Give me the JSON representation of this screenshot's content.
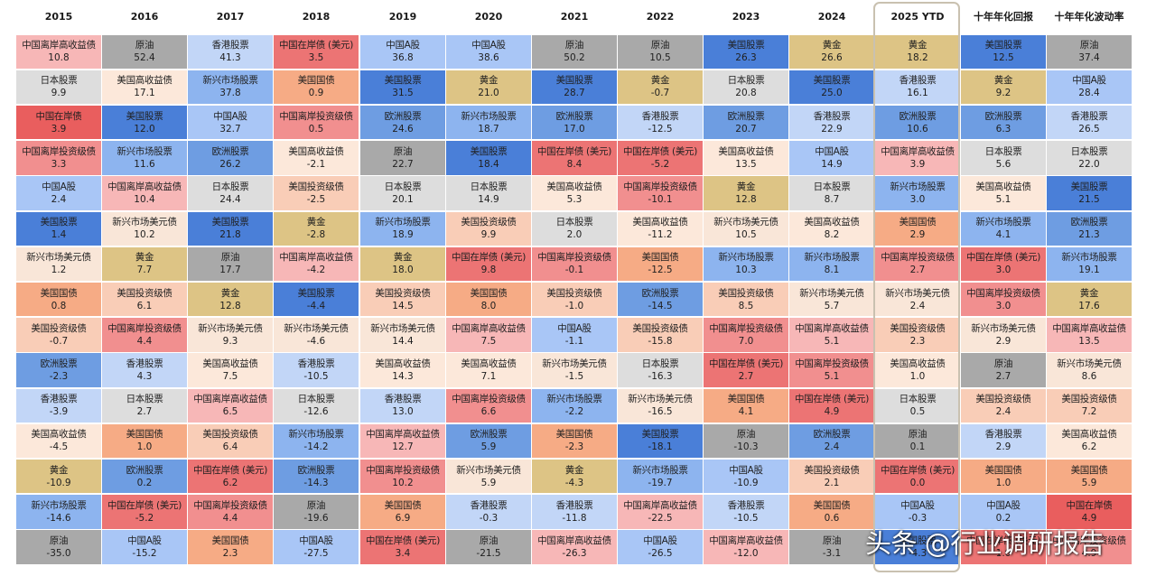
{
  "chart_data": {
    "type": "table",
    "title": "",
    "columns": [
      "2015",
      "2016",
      "2017",
      "2018",
      "2019",
      "2020",
      "2021",
      "2022",
      "2023",
      "2024",
      "2025 YTD",
      "十年年化回报",
      "十年年化波动率"
    ],
    "highlighted_column": "2025 YTD",
    "asset_colors": {
      "美国股票": "#4a7fd8",
      "中国A股": "#a9c6f6",
      "香港股票": "#c2d6f7",
      "欧洲股票": "#6e9de2",
      "新兴市场股票": "#8db4ef",
      "黄金": "#ddc485",
      "原油": "#a9a9a9",
      "美国国债": "#f6ab85",
      "美国投资级债": "#f9cdb7",
      "美国高收益债": "#fce8da",
      "新兴市场美元债": "#f9e6d8",
      "中国在岸债": "#e95e5e",
      "中国在岸债 (美元)": "#ec7474",
      "中国离岸投资级债": "#f18f8f",
      "中国离岸高收益债": "#f7b7b7"
    },
    "rows": [
      [
        [
          "中国离岸高收益债",
          "10.8"
        ],
        [
          "原油",
          "52.4"
        ],
        [
          "香港股票",
          "41.3"
        ],
        [
          "中国在岸债 (美元)",
          "3.5"
        ],
        [
          "中国A股",
          "36.8"
        ],
        [
          "中国A股",
          "38.6"
        ],
        [
          "原油",
          "50.2"
        ],
        [
          "原油",
          "10.5"
        ],
        [
          "美国股票",
          "26.3"
        ],
        [
          "黄金",
          "26.6"
        ],
        [
          "黄金",
          "18.2"
        ],
        [
          "美国股票",
          "12.5"
        ],
        [
          "原油",
          "37.4"
        ]
      ],
      [
        [
          "日本股票",
          "9.9"
        ],
        [
          "美国高收益债",
          "17.1"
        ],
        [
          "新兴市场股票",
          "37.8"
        ],
        [
          "美国国债",
          "0.9"
        ],
        [
          "美国股票",
          "31.5"
        ],
        [
          "黄金",
          "21.0"
        ],
        [
          "美国股票",
          "28.7"
        ],
        [
          "黄金",
          "-0.7"
        ],
        [
          "日本股票",
          "20.8"
        ],
        [
          "美国股票",
          "25.0"
        ],
        [
          "香港股票",
          "16.1"
        ],
        [
          "黄金",
          "9.2"
        ],
        [
          "中国A股",
          "28.4"
        ]
      ],
      [
        [
          "中国在岸债",
          "3.9"
        ],
        [
          "美国股票",
          "12.0"
        ],
        [
          "中国A股",
          "32.7"
        ],
        [
          "中国离岸投资级债",
          "0.5"
        ],
        [
          "欧洲股票",
          "24.6"
        ],
        [
          "新兴市场股票",
          "18.7"
        ],
        [
          "欧洲股票",
          "17.0"
        ],
        [
          "香港股票",
          "-12.5"
        ],
        [
          "欧洲股票",
          "20.7"
        ],
        [
          "香港股票",
          "22.9"
        ],
        [
          "欧洲股票",
          "10.6"
        ],
        [
          "欧洲股票",
          "6.3"
        ],
        [
          "香港股票",
          "26.5"
        ]
      ],
      [
        [
          "中国离岸投资级债",
          "3.3"
        ],
        [
          "新兴市场股票",
          "11.6"
        ],
        [
          "欧洲股票",
          "26.2"
        ],
        [
          "美国高收益债",
          "-2.1"
        ],
        [
          "原油",
          "22.7"
        ],
        [
          "美国股票",
          "18.4"
        ],
        [
          "中国在岸债 (美元)",
          "8.4"
        ],
        [
          "中国在岸债 (美元)",
          "-5.2"
        ],
        [
          "美国高收益债",
          "13.5"
        ],
        [
          "中国A股",
          "14.9"
        ],
        [
          "中国离岸高收益债",
          "3.9"
        ],
        [
          "日本股票",
          "5.6"
        ],
        [
          "日本股票",
          "22.0"
        ]
      ],
      [
        [
          "中国A股",
          "2.4"
        ],
        [
          "中国离岸高收益债",
          "10.4"
        ],
        [
          "日本股票",
          "24.4"
        ],
        [
          "美国投资级债",
          "-2.5"
        ],
        [
          "日本股票",
          "20.1"
        ],
        [
          "日本股票",
          "14.9"
        ],
        [
          "美国高收益债",
          "5.3"
        ],
        [
          "中国离岸投资级债",
          "-10.1"
        ],
        [
          "黄金",
          "12.8"
        ],
        [
          "日本股票",
          "8.7"
        ],
        [
          "新兴市场股票",
          "3.0"
        ],
        [
          "美国高收益债",
          "5.1"
        ],
        [
          "美国股票",
          "21.5"
        ]
      ],
      [
        [
          "美国股票",
          "1.4"
        ],
        [
          "新兴市场美元债",
          "10.2"
        ],
        [
          "美国股票",
          "21.8"
        ],
        [
          "黄金",
          "-2.8"
        ],
        [
          "新兴市场股票",
          "18.9"
        ],
        [
          "美国投资级债",
          "9.9"
        ],
        [
          "日本股票",
          "2.0"
        ],
        [
          "美国高收益债",
          "-11.2"
        ],
        [
          "新兴市场美元债",
          "10.5"
        ],
        [
          "美国高收益债",
          "8.2"
        ],
        [
          "美国国债",
          "2.9"
        ],
        [
          "新兴市场股票",
          "4.1"
        ],
        [
          "欧洲股票",
          "21.3"
        ]
      ],
      [
        [
          "新兴市场美元债",
          "1.2"
        ],
        [
          "黄金",
          "7.7"
        ],
        [
          "原油",
          "17.7"
        ],
        [
          "中国离岸高收益债",
          "-4.2"
        ],
        [
          "黄金",
          "18.0"
        ],
        [
          "中国在岸债 (美元)",
          "9.8"
        ],
        [
          "中国离岸投资级债",
          "-0.1"
        ],
        [
          "美国国债",
          "-12.5"
        ],
        [
          "新兴市场股票",
          "10.3"
        ],
        [
          "新兴市场股票",
          "8.1"
        ],
        [
          "中国离岸投资级债",
          "2.7"
        ],
        [
          "中国在岸债 (美元)",
          "3.0"
        ],
        [
          "新兴市场股票",
          "19.1"
        ]
      ],
      [
        [
          "美国国债",
          "0.8"
        ],
        [
          "美国投资级债",
          "6.1"
        ],
        [
          "黄金",
          "12.8"
        ],
        [
          "美国股票",
          "-4.4"
        ],
        [
          "美国投资级债",
          "14.5"
        ],
        [
          "美国国债",
          "8.0"
        ],
        [
          "美国投资级债",
          "-1.0"
        ],
        [
          "欧洲股票",
          "-14.5"
        ],
        [
          "美国投资级债",
          "8.5"
        ],
        [
          "新兴市场美元债",
          "5.7"
        ],
        [
          "新兴市场美元债",
          "2.4"
        ],
        [
          "中国离岸投资级债",
          "3.0"
        ],
        [
          "黄金",
          "17.6"
        ]
      ],
      [
        [
          "美国投资级债",
          "-0.7"
        ],
        [
          "中国离岸投资级债",
          "4.4"
        ],
        [
          "新兴市场美元债",
          "9.3"
        ],
        [
          "新兴市场美元债",
          "-4.6"
        ],
        [
          "新兴市场美元债",
          "14.4"
        ],
        [
          "中国离岸高收益债",
          "7.5"
        ],
        [
          "中国A股",
          "-1.1"
        ],
        [
          "美国投资级债",
          "-15.8"
        ],
        [
          "中国离岸投资级债",
          "7.0"
        ],
        [
          "中国离岸高收益债",
          "5.1"
        ],
        [
          "美国投资级债",
          "2.3"
        ],
        [
          "新兴市场美元债",
          "2.9"
        ],
        [
          "中国离岸高收益债",
          "13.5"
        ]
      ],
      [
        [
          "欧洲股票",
          "-2.3"
        ],
        [
          "香港股票",
          "4.3"
        ],
        [
          "美国高收益债",
          "7.5"
        ],
        [
          "香港股票",
          "-10.5"
        ],
        [
          "美国高收益债",
          "14.3"
        ],
        [
          "美国高收益债",
          "7.1"
        ],
        [
          "新兴市场美元债",
          "-1.5"
        ],
        [
          "日本股票",
          "-16.3"
        ],
        [
          "中国在岸债 (美元)",
          "2.7"
        ],
        [
          "中国离岸投资级债",
          "5.1"
        ],
        [
          "美国高收益债",
          "1.0"
        ],
        [
          "原油",
          "2.7"
        ],
        [
          "新兴市场美元债",
          "8.6"
        ]
      ],
      [
        [
          "香港股票",
          "-3.9"
        ],
        [
          "日本股票",
          "2.7"
        ],
        [
          "中国离岸高收益债",
          "6.5"
        ],
        [
          "日本股票",
          "-12.6"
        ],
        [
          "香港股票",
          "13.0"
        ],
        [
          "中国离岸投资级债",
          "6.6"
        ],
        [
          "新兴市场股票",
          "-2.2"
        ],
        [
          "新兴市场美元债",
          "-16.5"
        ],
        [
          "美国国债",
          "4.1"
        ],
        [
          "中国在岸债 (美元)",
          "4.9"
        ],
        [
          "日本股票",
          "0.5"
        ],
        [
          "美国投资级债",
          "2.4"
        ],
        [
          "美国投资级债",
          "7.2"
        ]
      ],
      [
        [
          "美国高收益债",
          "-4.5"
        ],
        [
          "美国国债",
          "1.0"
        ],
        [
          "美国投资级债",
          "6.4"
        ],
        [
          "新兴市场股票",
          "-14.2"
        ],
        [
          "中国离岸高收益债",
          "12.7"
        ],
        [
          "欧洲股票",
          "5.9"
        ],
        [
          "美国国债",
          "-2.3"
        ],
        [
          "美国股票",
          "-18.1"
        ],
        [
          "原油",
          "-10.3"
        ],
        [
          "欧洲股票",
          "2.4"
        ],
        [
          "原油",
          "0.1"
        ],
        [
          "香港股票",
          "2.9"
        ],
        [
          "美国高收益债",
          "6.2"
        ]
      ],
      [
        [
          "黄金",
          "-10.9"
        ],
        [
          "欧洲股票",
          "0.2"
        ],
        [
          "中国在岸债 (美元)",
          "6.2"
        ],
        [
          "欧洲股票",
          "-14.3"
        ],
        [
          "中国离岸投资级债",
          "10.2"
        ],
        [
          "新兴市场美元债",
          "5.9"
        ],
        [
          "黄金",
          "-4.3"
        ],
        [
          "新兴市场股票",
          "-19.7"
        ],
        [
          "中国A股",
          "-10.9"
        ],
        [
          "美国投资级债",
          "2.1"
        ],
        [
          "中国在岸债 (美元)",
          "0.0"
        ],
        [
          "美国国债",
          "1.0"
        ],
        [
          "美国国债",
          "5.9"
        ]
      ],
      [
        [
          "新兴市场股票",
          "-14.6"
        ],
        [
          "中国在岸债 (美元)",
          "-5.2"
        ],
        [
          "中国离岸投资级债",
          "4.4"
        ],
        [
          "原油",
          "-19.6"
        ],
        [
          "美国国债",
          "6.9"
        ],
        [
          "香港股票",
          "-0.3"
        ],
        [
          "香港股票",
          "-11.8"
        ],
        [
          "中国离岸高收益债",
          "-22.5"
        ],
        [
          "香港股票",
          "-10.5"
        ],
        [
          "美国国债",
          "0.6"
        ],
        [
          "中国A股",
          "-0.3"
        ],
        [
          "中国A股",
          "0.2"
        ],
        [
          "中国在岸债",
          "4.9"
        ]
      ],
      [
        [
          "原油",
          "-35.0"
        ],
        [
          "中国A股",
          "-15.2"
        ],
        [
          "美国国债",
          "2.3"
        ],
        [
          "中国A股",
          "-27.5"
        ],
        [
          "中国在岸债 (美元)",
          "3.4"
        ],
        [
          "原油",
          "-21.5"
        ],
        [
          "中国离岸高收益债",
          "-26.3"
        ],
        [
          "中国A股",
          "-26.5"
        ],
        [
          "中国离岸高收益债",
          "-12.0"
        ],
        [
          "原油",
          "-3.1"
        ],
        [
          "美国股票",
          "-4.3"
        ],
        [
          "中国在岸债 (美元)",
          "1.0"
        ],
        [
          "中国离岸投资级债",
          "4.9"
        ]
      ]
    ]
  },
  "watermark": {
    "text": "头条 @行业调研报告"
  }
}
